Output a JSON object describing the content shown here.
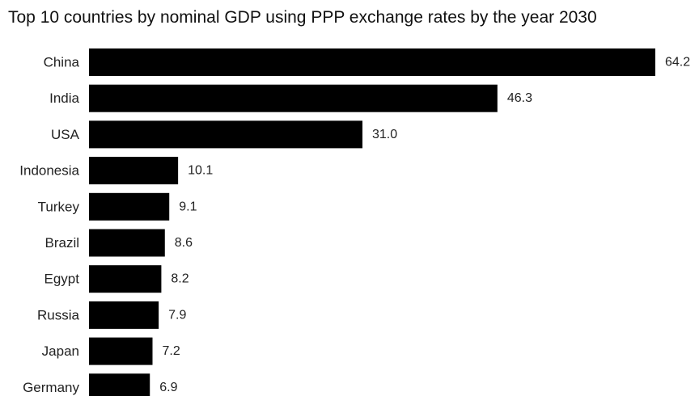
{
  "chart_data": {
    "type": "bar",
    "orientation": "horizontal",
    "title": "Top 10 countries by nominal GDP using PPP exchange rates by the year 2030",
    "categories": [
      "China",
      "India",
      "USA",
      "Indonesia",
      "Turkey",
      "Brazil",
      "Egypt",
      "Russia",
      "Japan",
      "Germany"
    ],
    "values": [
      64.2,
      46.3,
      31.0,
      10.1,
      9.1,
      8.6,
      8.2,
      7.9,
      7.2,
      6.9
    ],
    "value_labels": [
      "64.2",
      "46.3",
      "31.0",
      "10.1",
      "9.1",
      "8.6",
      "8.2",
      "7.9",
      "7.2",
      "6.9"
    ],
    "xlim": [
      0,
      64.2
    ],
    "grid": false,
    "legend": "none",
    "bar_color": "#000000"
  }
}
